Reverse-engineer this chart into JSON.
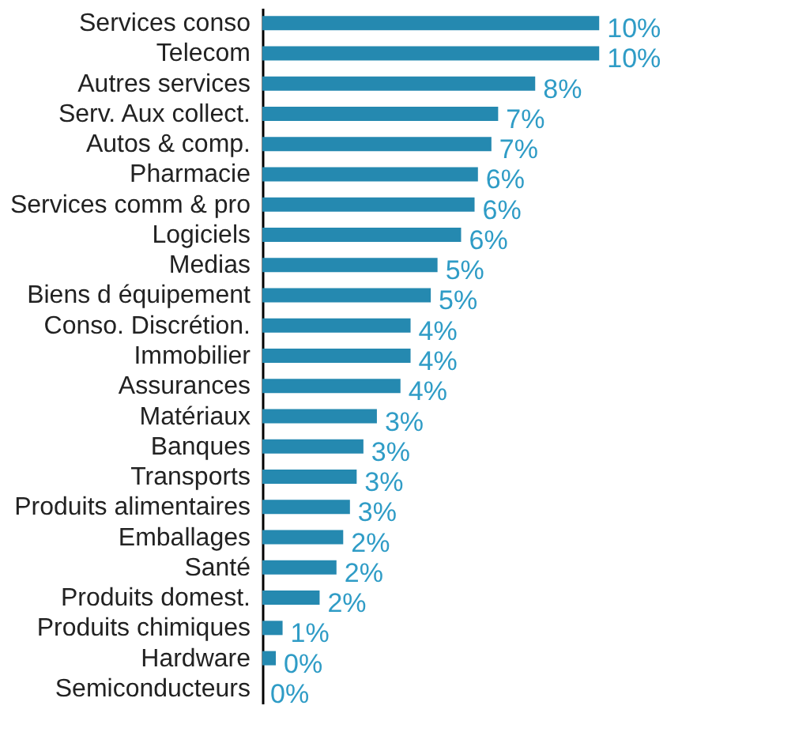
{
  "chart_data": {
    "type": "bar",
    "orientation": "horizontal",
    "categories": [
      "Services conso",
      "Telecom",
      "Autres services",
      "Serv. Aux collect.",
      "Autos & comp.",
      "Pharmacie",
      "Services comm & pro",
      "Logiciels",
      "Medias",
      "Biens d équipement",
      "Conso. Discrétion.",
      "Immobilier",
      "Assurances",
      "Matériaux",
      "Banques",
      "Transports",
      "Produits alimentaires",
      "Emballages",
      "Santé",
      "Produits domest.",
      "Produits chimiques",
      "Hardware",
      "Semiconducteurs"
    ],
    "values": [
      10.0,
      10.0,
      8.1,
      7.0,
      6.8,
      6.4,
      6.3,
      5.9,
      5.2,
      5.0,
      4.4,
      4.4,
      4.1,
      3.4,
      3.0,
      2.8,
      2.6,
      2.4,
      2.2,
      1.7,
      0.6,
      0.4,
      0.0
    ],
    "value_labels": [
      "10%",
      "10%",
      "8%",
      "7%",
      "7%",
      "6%",
      "6%",
      "6%",
      "5%",
      "5%",
      "4%",
      "4%",
      "4%",
      "3%",
      "3%",
      "3%",
      "3%",
      "2%",
      "2%",
      "2%",
      "1%",
      "0%",
      "0%"
    ],
    "color": "#2589b0"
  }
}
